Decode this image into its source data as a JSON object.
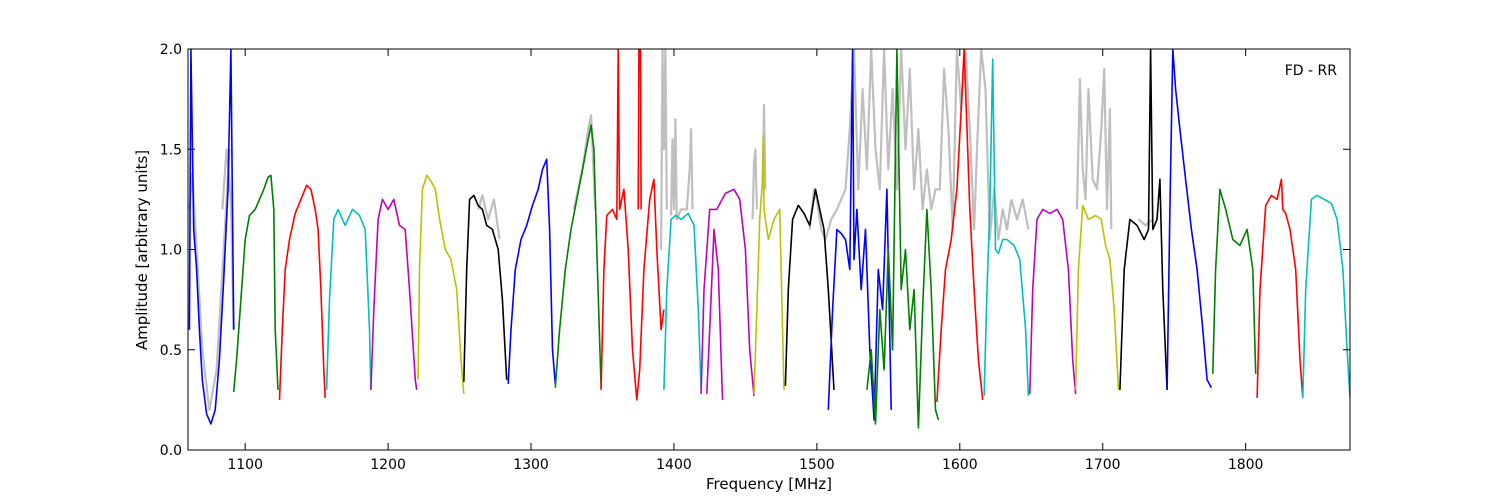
{
  "chart_data": {
    "type": "line",
    "title": "",
    "annotation": "FD - RR",
    "xlabel": "Frequency [MHz]",
    "ylabel": "Amplitude [arbitrary units]",
    "xlim": [
      1060,
      1873
    ],
    "ylim": [
      0.0,
      2.0
    ],
    "grid": false,
    "legend": "none",
    "x_ticks": [
      1100,
      1200,
      1300,
      1400,
      1500,
      1600,
      1700,
      1800
    ],
    "x_tick_labels": [
      "1100",
      "1200",
      "1300",
      "1400",
      "1500",
      "1600",
      "1700",
      "1800"
    ],
    "y_ticks": [
      0.0,
      0.5,
      1.0,
      1.5,
      2.0
    ],
    "y_tick_labels": [
      "0.0",
      "0.5",
      "1.0",
      "1.5",
      "2.0"
    ],
    "background_trace_color": "#bfbfbf",
    "series": [
      {
        "color": "#0000ff",
        "x": [
          1061,
          1062,
          1064,
          1066,
          1068,
          1070,
          1073,
          1076,
          1079,
          1082,
          1085,
          1088,
          1090,
          1092
        ],
        "y": [
          0.6,
          2.0,
          1.1,
          0.9,
          0.6,
          0.35,
          0.18,
          0.13,
          0.2,
          0.45,
          0.85,
          1.3,
          2.0,
          0.6
        ]
      },
      {
        "color": "#008000",
        "x": [
          1092,
          1094,
          1097,
          1100,
          1103,
          1107,
          1110,
          1113,
          1116,
          1118,
          1120,
          1121,
          1123
        ],
        "y": [
          0.29,
          0.45,
          0.75,
          1.05,
          1.17,
          1.2,
          1.25,
          1.3,
          1.36,
          1.37,
          1.2,
          0.6,
          0.3
        ]
      },
      {
        "color": "#ff0000",
        "x": [
          1124,
          1126,
          1128,
          1131,
          1135,
          1139,
          1143,
          1146,
          1149,
          1151,
          1153,
          1155,
          1156
        ],
        "y": [
          0.25,
          0.6,
          0.9,
          1.05,
          1.18,
          1.25,
          1.32,
          1.3,
          1.2,
          1.1,
          0.8,
          0.4,
          0.26
        ]
      },
      {
        "color": "#00bfbf",
        "x": [
          1157,
          1159,
          1162,
          1165,
          1170,
          1175,
          1180,
          1184,
          1187,
          1188
        ],
        "y": [
          0.3,
          0.75,
          1.15,
          1.2,
          1.12,
          1.2,
          1.17,
          1.1,
          0.6,
          0.3
        ]
      },
      {
        "color": "#bf00bf",
        "x": [
          1188,
          1190,
          1193,
          1196,
          1200,
          1204,
          1208,
          1212,
          1215,
          1219,
          1220
        ],
        "y": [
          0.3,
          0.7,
          1.15,
          1.25,
          1.2,
          1.25,
          1.12,
          1.1,
          0.8,
          0.35,
          0.3
        ]
      },
      {
        "color": "#bfbf00",
        "x": [
          1221,
          1222,
          1224,
          1227,
          1230,
          1233,
          1236,
          1240,
          1244,
          1248,
          1251,
          1253
        ],
        "y": [
          0.35,
          0.9,
          1.3,
          1.37,
          1.34,
          1.3,
          1.15,
          1.0,
          0.95,
          0.8,
          0.45,
          0.28
        ]
      },
      {
        "color": "#000000",
        "x": [
          1253,
          1255,
          1257,
          1260,
          1263,
          1266,
          1269,
          1273,
          1277,
          1280,
          1283
        ],
        "y": [
          0.34,
          0.9,
          1.25,
          1.27,
          1.22,
          1.2,
          1.12,
          1.1,
          1.0,
          0.75,
          0.35
        ]
      },
      {
        "color": "#0000ff",
        "x": [
          1284,
          1286,
          1289,
          1293,
          1297,
          1301,
          1305,
          1308,
          1311,
          1313,
          1315,
          1317
        ],
        "y": [
          0.33,
          0.6,
          0.9,
          1.05,
          1.12,
          1.22,
          1.3,
          1.4,
          1.45,
          1.1,
          0.5,
          0.33
        ]
      },
      {
        "color": "#008000",
        "x": [
          1317,
          1320,
          1324,
          1328,
          1332,
          1336,
          1340,
          1342,
          1344,
          1346,
          1349
        ],
        "y": [
          0.31,
          0.6,
          0.9,
          1.1,
          1.25,
          1.4,
          1.55,
          1.62,
          1.5,
          1.0,
          0.31
        ]
      },
      {
        "color": "#ff0000",
        "x": [
          1349,
          1351,
          1353,
          1357,
          1360,
          1361,
          1362,
          1365,
          1368,
          1371,
          1374,
          1376,
          1379,
          1383,
          1386,
          1388,
          1391,
          1393
        ],
        "y": [
          0.3,
          0.9,
          1.17,
          1.2,
          1.15,
          2.0,
          1.2,
          1.3,
          1.0,
          0.5,
          0.25,
          0.4,
          0.9,
          1.25,
          1.35,
          1.0,
          0.6,
          0.7
        ]
      },
      {
        "color": "#ff0000",
        "x": [
          1375,
          1375.5,
          1376,
          1376.5,
          1377
        ],
        "y": [
          1.2,
          2.0,
          2.0,
          2.0,
          1.2
        ]
      },
      {
        "color": "#00bfbf",
        "x": [
          1393,
          1395,
          1398,
          1401,
          1405,
          1410,
          1414,
          1417,
          1419
        ],
        "y": [
          0.3,
          0.8,
          1.15,
          1.17,
          1.15,
          1.18,
          1.12,
          0.7,
          0.3
        ]
      },
      {
        "color": "#bf00bf",
        "x": [
          1419,
          1421,
          1425,
          1430,
          1436,
          1442,
          1446,
          1450,
          1453,
          1456
        ],
        "y": [
          0.28,
          0.8,
          1.2,
          1.2,
          1.28,
          1.3,
          1.25,
          1.0,
          0.5,
          0.27
        ]
      },
      {
        "color": "#bf00bf",
        "x": [
          1423,
          1425,
          1428,
          1431,
          1434
        ],
        "y": [
          0.28,
          0.6,
          1.1,
          0.9,
          0.25
        ]
      },
      {
        "color": "#bfbf00",
        "x": [
          1456,
          1458,
          1460,
          1462,
          1462.6,
          1463,
          1466,
          1470,
          1474,
          1477
        ],
        "y": [
          0.28,
          0.7,
          1.15,
          1.35,
          1.57,
          1.2,
          1.05,
          1.15,
          1.2,
          0.3
        ]
      },
      {
        "color": "#000000",
        "x": [
          1478,
          1480,
          1483,
          1487,
          1491,
          1495,
          1499,
          1502,
          1505,
          1508,
          1512
        ],
        "y": [
          0.32,
          0.8,
          1.15,
          1.22,
          1.18,
          1.12,
          1.3,
          1.2,
          1.1,
          0.8,
          0.3
        ]
      },
      {
        "color": "#0000ff",
        "x": [
          1508,
          1511,
          1514,
          1517,
          1520,
          1523,
          1525,
          1526,
          1528,
          1531,
          1534,
          1537,
          1540,
          1543,
          1546,
          1549,
          1552
        ],
        "y": [
          0.2,
          0.7,
          1.1,
          1.08,
          1.05,
          0.9,
          2.0,
          0.95,
          1.2,
          0.8,
          1.1,
          0.5,
          0.15,
          0.9,
          0.7,
          1.3,
          0.2
        ]
      },
      {
        "color": "#008000",
        "x": [
          1535,
          1538,
          1541,
          1544,
          1547,
          1550,
          1553,
          1556,
          1559,
          1562,
          1565,
          1568,
          1571,
          1574,
          1577,
          1580,
          1583,
          1585
        ],
        "y": [
          0.3,
          0.5,
          0.13,
          0.7,
          0.4,
          1.0,
          0.5,
          2.0,
          0.8,
          1.0,
          0.6,
          0.8,
          0.11,
          0.7,
          1.2,
          0.8,
          0.2,
          0.15
        ]
      },
      {
        "color": "#ff0000",
        "x": [
          1584,
          1587,
          1590,
          1594,
          1598,
          1601,
          1603,
          1605,
          1607,
          1610,
          1613,
          1616
        ],
        "y": [
          0.24,
          0.6,
          0.9,
          1.05,
          1.3,
          1.7,
          2.0,
          1.6,
          1.2,
          0.8,
          0.45,
          0.25
        ]
      },
      {
        "color": "#00bfbf",
        "x": [
          1617,
          1619,
          1621,
          1623,
          1625,
          1627,
          1630,
          1633,
          1638,
          1642,
          1646,
          1648
        ],
        "y": [
          0.27,
          0.8,
          1.2,
          1.95,
          1.0,
          0.98,
          1.05,
          1.05,
          1.02,
          0.95,
          0.6,
          0.27
        ]
      },
      {
        "color": "#bf00bf",
        "x": [
          1649,
          1651,
          1654,
          1658,
          1663,
          1668,
          1672,
          1676,
          1679,
          1681
        ],
        "y": [
          0.28,
          0.8,
          1.15,
          1.2,
          1.18,
          1.2,
          1.15,
          0.9,
          0.45,
          0.28
        ]
      },
      {
        "color": "#bfbf00",
        "x": [
          1681,
          1683,
          1686,
          1690,
          1695,
          1699,
          1702,
          1705,
          1708,
          1711
        ],
        "y": [
          0.3,
          0.9,
          1.22,
          1.15,
          1.17,
          1.15,
          1.02,
          0.95,
          0.7,
          0.3
        ]
      },
      {
        "color": "#000000",
        "x": [
          1712,
          1715,
          1719,
          1724,
          1729,
          1732,
          1733.5,
          1735,
          1738,
          1740,
          1742,
          1745
        ],
        "y": [
          0.3,
          0.9,
          1.15,
          1.12,
          1.05,
          1.1,
          2.0,
          1.1,
          1.15,
          1.35,
          0.8,
          0.3
        ]
      },
      {
        "color": "#0000ff",
        "x": [
          1745,
          1747,
          1749,
          1751,
          1754,
          1758,
          1762,
          1766,
          1770,
          1773,
          1776
        ],
        "y": [
          0.3,
          1.2,
          2.0,
          1.8,
          1.6,
          1.35,
          1.1,
          0.9,
          0.6,
          0.35,
          0.31
        ]
      },
      {
        "color": "#008000",
        "x": [
          1777,
          1779,
          1782,
          1786,
          1791,
          1796,
          1801,
          1805,
          1807
        ],
        "y": [
          0.38,
          0.9,
          1.3,
          1.2,
          1.05,
          1.02,
          1.1,
          0.9,
          0.38
        ]
      },
      {
        "color": "#ff0000",
        "x": [
          1808,
          1810,
          1814,
          1818,
          1822,
          1825,
          1826,
          1828,
          1831,
          1835,
          1838,
          1840
        ],
        "y": [
          0.26,
          0.8,
          1.22,
          1.27,
          1.25,
          1.35,
          1.2,
          1.18,
          1.1,
          0.9,
          0.45,
          0.26
        ]
      },
      {
        "color": "#00bfbf",
        "x": [
          1840,
          1842,
          1846,
          1850,
          1855,
          1860,
          1864,
          1868,
          1871,
          1873
        ],
        "y": [
          0.26,
          0.8,
          1.25,
          1.27,
          1.25,
          1.23,
          1.15,
          0.9,
          0.5,
          0.26
        ]
      }
    ],
    "background_trace": [
      {
        "x": [
          1061,
          1063,
          1066,
          1070,
          1075,
          1080,
          1085,
          1089
        ],
        "y": [
          1.2,
          1.38,
          1.0,
          0.5,
          0.2,
          0.4,
          1.0,
          1.5
        ]
      },
      {
        "x": [
          1084,
          1087,
          1090,
          1092
        ],
        "y": [
          1.2,
          1.5,
          1.25,
          0.6
        ]
      },
      {
        "x": [
          1263,
          1266,
          1270,
          1274,
          1278
        ],
        "y": [
          1.2,
          1.27,
          1.15,
          1.25,
          1.05
        ]
      },
      {
        "x": [
          1330,
          1336,
          1340,
          1342,
          1345
        ],
        "y": [
          1.2,
          1.4,
          1.6,
          1.67,
          1.2
        ]
      },
      {
        "x": [
          1391,
          1392,
          1393,
          1394,
          1395
        ],
        "y": [
          1.0,
          2.0,
          1.5,
          2.0,
          1.2
        ]
      },
      {
        "x": [
          1398,
          1399,
          1400,
          1401,
          1402,
          1405,
          1409,
          1411,
          1412,
          1413
        ],
        "y": [
          1.17,
          1.55,
          1.2,
          1.65,
          1.15,
          1.2,
          1.2,
          1.4,
          1.6,
          1.2
        ]
      },
      {
        "x": [
          1455,
          1456,
          1457,
          1458
        ],
        "y": [
          1.15,
          1.43,
          1.5,
          1.2
        ]
      },
      {
        "x": [
          1462,
          1463,
          1464
        ],
        "y": [
          1.3,
          1.72,
          1.3
        ]
      },
      {
        "x": [
          1495,
          1498,
          1500,
          1503,
          1506,
          1510,
          1514,
          1517,
          1520,
          1523,
          1526,
          1529,
          1532,
          1535,
          1538,
          1541,
          1544,
          1547,
          1550,
          1553,
          1556,
          1559,
          1562,
          1565,
          1568,
          1571,
          1574,
          1577,
          1580,
          1583,
          1586,
          1589,
          1592,
          1595,
          1598,
          1601,
          1604,
          1607,
          1610,
          1612,
          1615,
          1618,
          1621,
          1624,
          1627,
          1630,
          1633,
          1636
        ],
        "y": [
          1.1,
          1.3,
          1.25,
          1.1,
          1.05,
          1.15,
          1.2,
          1.25,
          1.3,
          1.6,
          2.0,
          1.3,
          1.8,
          1.4,
          2.0,
          1.5,
          1.3,
          2.0,
          1.4,
          1.8,
          1.3,
          2.0,
          1.5,
          1.9,
          1.3,
          1.6,
          1.2,
          1.4,
          1.2,
          1.3,
          1.3,
          1.9,
          1.6,
          1.1,
          2.0,
          1.7,
          2.0,
          1.6,
          1.1,
          1.5,
          2.0,
          1.8,
          1.05,
          1.3,
          1.05,
          1.2,
          1.1,
          1.25
        ]
      },
      {
        "x": [
          1636,
          1640,
          1644,
          1648
        ],
        "y": [
          1.25,
          1.15,
          1.25,
          1.1
        ]
      },
      {
        "x": [
          1682,
          1684,
          1686,
          1688,
          1690,
          1693,
          1696,
          1699,
          1701,
          1703,
          1705,
          1706
        ],
        "y": [
          1.2,
          1.85,
          1.4,
          1.25,
          1.8,
          1.35,
          1.3,
          1.6,
          1.9,
          1.2,
          1.7,
          1.1
        ]
      },
      {
        "x": [
          1725,
          1730,
          1735
        ],
        "y": [
          1.15,
          1.12,
          1.15
        ]
      }
    ]
  }
}
